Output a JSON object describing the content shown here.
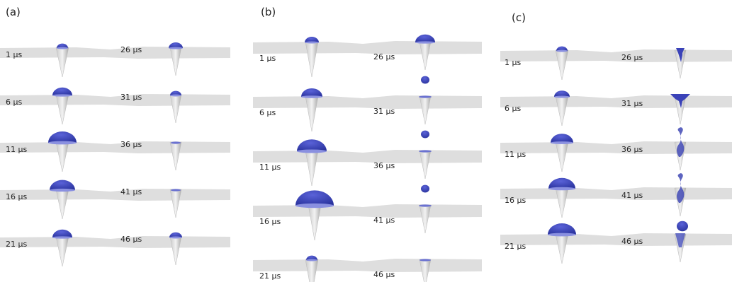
{
  "panels": [
    {
      "label": "(a)",
      "rows": [
        [
          "1 µs",
          "26 µs"
        ],
        [
          "6 µs",
          "31 µs"
        ],
        [
          "11 µs",
          "36 µs"
        ],
        [
          "16 µs",
          "41 µs"
        ],
        [
          "21 µs",
          "46 µs"
        ]
      ]
    },
    {
      "label": "(b)",
      "rows": [
        [
          "1 µs",
          "26 µs"
        ],
        [
          "6 µs",
          "31 µs"
        ],
        [
          "11 µs",
          "36 µs"
        ],
        [
          "16 µs",
          "41 µs"
        ],
        [
          "21 µs",
          "46 µs"
        ]
      ]
    },
    {
      "label": "(c)",
      "rows": [
        [
          "1 µs",
          "26 µs"
        ],
        [
          "6 µs",
          "31 µs"
        ],
        [
          "11 µs",
          "36 µs"
        ],
        [
          "16 µs",
          "41 µs"
        ],
        [
          "21 µs",
          "46 µs"
        ]
      ]
    }
  ]
}
